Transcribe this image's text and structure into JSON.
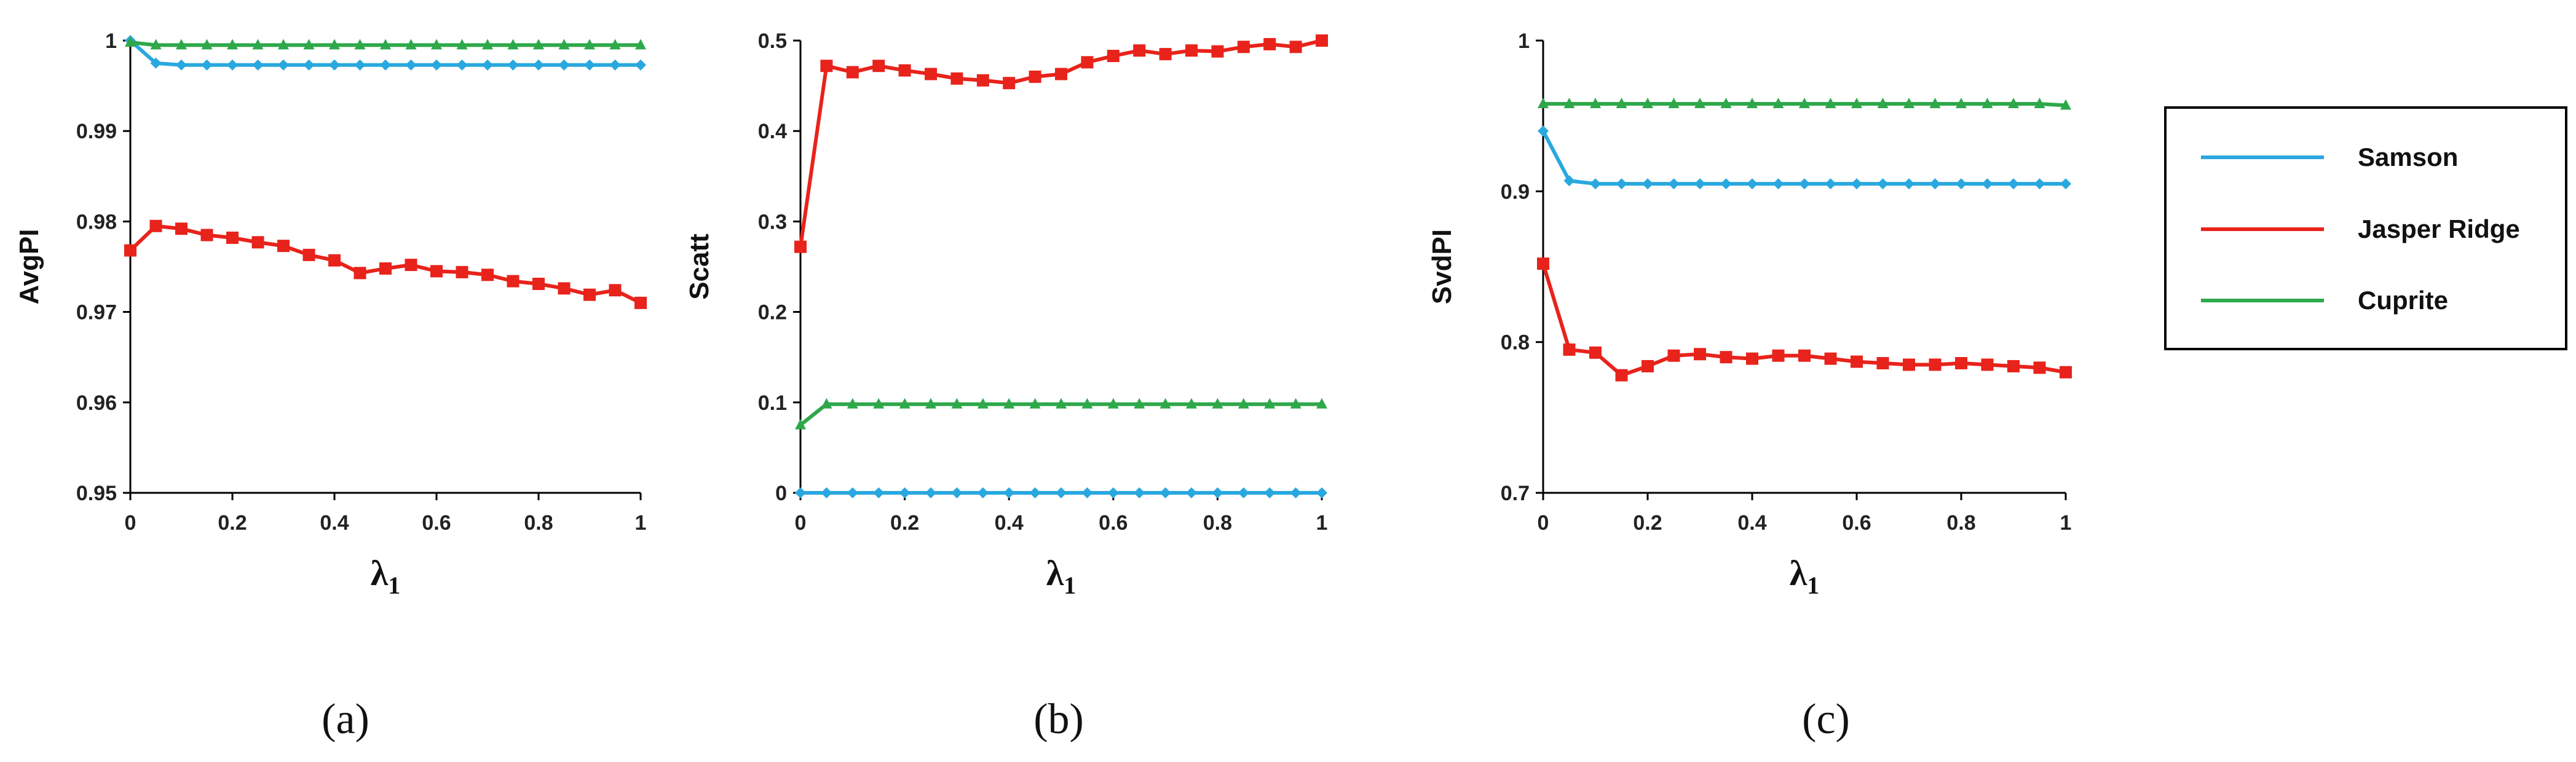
{
  "legend": {
    "entries": [
      {
        "name": "Samson",
        "color": "#29a8df"
      },
      {
        "name": "Jasper Ridge",
        "color": "#e8231b"
      },
      {
        "name": "Cuprite",
        "color": "#2ea84a"
      }
    ]
  },
  "chart_data": [
    {
      "type": "line",
      "panel_label": "(a)",
      "panel_letter": "a",
      "ylabel": "AvgPI",
      "xlabel": "λ",
      "xlabel_sub": "1",
      "ylim": [
        0.95,
        1
      ],
      "xlim": [
        0,
        1
      ],
      "yticks": [
        0.95,
        0.96,
        0.97,
        0.98,
        0.99,
        1
      ],
      "ytick_labels": [
        "0.95",
        "0.96",
        "0.97",
        "0.98",
        "0.99",
        "1"
      ],
      "xticks": [
        0,
        0.2,
        0.4,
        0.6,
        0.8,
        1
      ],
      "xtick_labels": [
        "0",
        "0.2",
        "0.4",
        "0.6",
        "0.8",
        "1"
      ],
      "x": [
        0,
        0.05,
        0.1,
        0.15,
        0.2,
        0.25,
        0.3,
        0.35,
        0.4,
        0.45,
        0.5,
        0.55,
        0.6,
        0.65,
        0.7,
        0.75,
        0.8,
        0.85,
        0.9,
        0.95,
        1
      ],
      "series": [
        {
          "name": "Samson",
          "marker": "diamond",
          "values": [
            1.0,
            0.9975,
            0.9973,
            0.9973,
            0.9973,
            0.9973,
            0.9973,
            0.9973,
            0.9973,
            0.9973,
            0.9973,
            0.9973,
            0.9973,
            0.9973,
            0.9973,
            0.9973,
            0.9973,
            0.9973,
            0.9973,
            0.9973,
            0.9973
          ]
        },
        {
          "name": "Jasper Ridge",
          "marker": "square",
          "values": [
            0.9768,
            0.9795,
            0.9792,
            0.9785,
            0.9782,
            0.9777,
            0.9773,
            0.9763,
            0.9757,
            0.9743,
            0.9748,
            0.9752,
            0.9745,
            0.9744,
            0.9741,
            0.9734,
            0.9731,
            0.9726,
            0.9719,
            0.9724,
            0.971
          ]
        },
        {
          "name": "Cuprite",
          "marker": "triangle",
          "values": [
            0.9998,
            0.9995,
            0.9995,
            0.9995,
            0.9995,
            0.9995,
            0.9995,
            0.9995,
            0.9995,
            0.9995,
            0.9995,
            0.9995,
            0.9995,
            0.9995,
            0.9995,
            0.9995,
            0.9995,
            0.9995,
            0.9995,
            0.9995,
            0.9995
          ]
        }
      ]
    },
    {
      "type": "line",
      "panel_label": "(b)",
      "panel_letter": "b",
      "ylabel": "Scatt",
      "xlabel": "λ",
      "xlabel_sub": "1",
      "ylim": [
        0,
        0.5
      ],
      "xlim": [
        0,
        1
      ],
      "yticks": [
        0,
        0.1,
        0.2,
        0.3,
        0.4,
        0.5
      ],
      "ytick_labels": [
        "0",
        "0.1",
        "0.2",
        "0.3",
        "0.4",
        "0.5"
      ],
      "xticks": [
        0,
        0.2,
        0.4,
        0.6,
        0.8,
        1
      ],
      "xtick_labels": [
        "0",
        "0.2",
        "0.4",
        "0.6",
        "0.8",
        "1"
      ],
      "x": [
        0,
        0.05,
        0.1,
        0.15,
        0.2,
        0.25,
        0.3,
        0.35,
        0.4,
        0.45,
        0.5,
        0.55,
        0.6,
        0.65,
        0.7,
        0.75,
        0.8,
        0.85,
        0.9,
        0.95,
        1
      ],
      "series": [
        {
          "name": "Samson",
          "marker": "diamond",
          "values": [
            0,
            0,
            0,
            0,
            0,
            0,
            0,
            0,
            0,
            0,
            0,
            0,
            0,
            0,
            0,
            0,
            0,
            0,
            0,
            0,
            0
          ]
        },
        {
          "name": "Jasper Ridge",
          "marker": "square",
          "values": [
            0.272,
            0.472,
            0.465,
            0.472,
            0.467,
            0.463,
            0.458,
            0.456,
            0.453,
            0.46,
            0.463,
            0.476,
            0.483,
            0.489,
            0.485,
            0.489,
            0.488,
            0.493,
            0.496,
            0.493,
            0.5
          ]
        },
        {
          "name": "Cuprite",
          "marker": "triangle",
          "values": [
            0.075,
            0.098,
            0.098,
            0.098,
            0.098,
            0.098,
            0.098,
            0.098,
            0.098,
            0.098,
            0.098,
            0.098,
            0.098,
            0.098,
            0.098,
            0.098,
            0.098,
            0.098,
            0.098,
            0.098,
            0.098
          ]
        }
      ]
    },
    {
      "type": "line",
      "panel_label": "(c)",
      "panel_letter": "c",
      "ylabel": "SvdPI",
      "xlabel": "λ",
      "xlabel_sub": "1",
      "ylim": [
        0.7,
        1
      ],
      "xlim": [
        0,
        1
      ],
      "yticks": [
        0.7,
        0.8,
        0.9,
        1
      ],
      "ytick_labels": [
        "0.7",
        "0.8",
        "0.9",
        "1"
      ],
      "xticks": [
        0,
        0.2,
        0.4,
        0.6,
        0.8,
        1
      ],
      "xtick_labels": [
        "0",
        "0.2",
        "0.4",
        "0.6",
        "0.8",
        "1"
      ],
      "x": [
        0,
        0.05,
        0.1,
        0.15,
        0.2,
        0.25,
        0.3,
        0.35,
        0.4,
        0.45,
        0.5,
        0.55,
        0.6,
        0.65,
        0.7,
        0.75,
        0.8,
        0.85,
        0.9,
        0.95,
        1
      ],
      "series": [
        {
          "name": "Samson",
          "marker": "diamond",
          "values": [
            0.94,
            0.907,
            0.905,
            0.905,
            0.905,
            0.905,
            0.905,
            0.905,
            0.905,
            0.905,
            0.905,
            0.905,
            0.905,
            0.905,
            0.905,
            0.905,
            0.905,
            0.905,
            0.905,
            0.905,
            0.905
          ]
        },
        {
          "name": "Jasper Ridge",
          "marker": "square",
          "values": [
            0.852,
            0.795,
            0.793,
            0.778,
            0.784,
            0.791,
            0.792,
            0.79,
            0.789,
            0.791,
            0.791,
            0.789,
            0.787,
            0.786,
            0.785,
            0.785,
            0.786,
            0.785,
            0.784,
            0.783,
            0.78
          ]
        },
        {
          "name": "Cuprite",
          "marker": "triangle",
          "values": [
            0.958,
            0.958,
            0.958,
            0.958,
            0.958,
            0.958,
            0.958,
            0.958,
            0.958,
            0.958,
            0.958,
            0.958,
            0.958,
            0.958,
            0.958,
            0.958,
            0.958,
            0.958,
            0.958,
            0.958,
            0.957
          ]
        }
      ]
    }
  ]
}
